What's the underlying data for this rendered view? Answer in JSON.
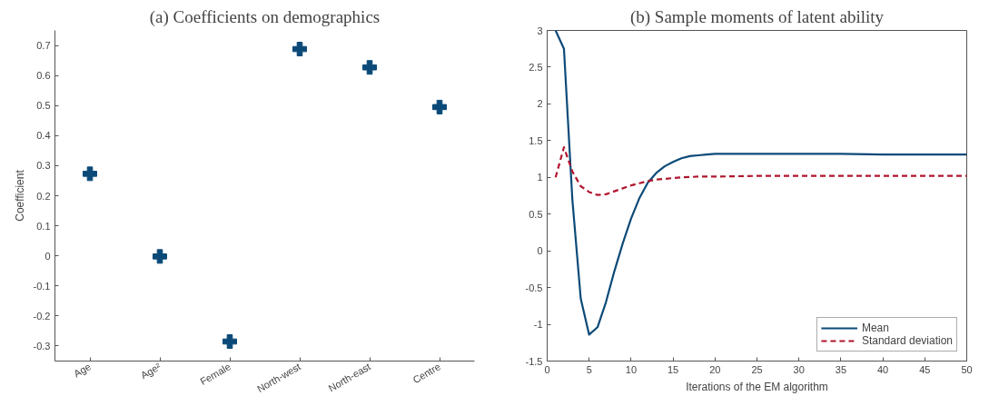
{
  "chart_data": [
    {
      "type": "scatter",
      "title": "(a) Coefficients on demographics",
      "ylabel": "Coefficient",
      "categories": [
        "Age",
        "Age²",
        "Female",
        "North-west",
        "North-east",
        "Centre"
      ],
      "series": [
        {
          "color": "#0b4a78",
          "values": [
            0.273,
            -0.002,
            -0.285,
            0.688,
            0.627,
            0.495
          ]
        }
      ],
      "ylim": [
        -0.35,
        0.75
      ],
      "yticks": [
        -0.3,
        -0.2,
        -0.1,
        0,
        0.1,
        0.2,
        0.3,
        0.4,
        0.5,
        0.6,
        0.7
      ],
      "marker": "cross",
      "grid": false
    },
    {
      "type": "line",
      "title": "(b) Sample moments of latent ability",
      "xlabel": "Iterations of the EM algorithm",
      "series": [
        {
          "name": "Mean",
          "color": "#0b4a78",
          "line_style": "solid",
          "x": [
            1,
            2,
            3,
            4,
            5,
            6,
            7,
            8,
            9,
            10,
            11,
            12,
            13,
            14,
            15,
            16,
            17,
            18,
            19,
            20,
            22,
            25,
            30,
            35,
            40,
            45,
            50
          ],
          "values": [
            3.0,
            2.75,
            0.7,
            -0.65,
            -1.14,
            -1.04,
            -0.7,
            -0.28,
            0.1,
            0.44,
            0.72,
            0.93,
            1.06,
            1.15,
            1.21,
            1.26,
            1.29,
            1.3,
            1.31,
            1.32,
            1.32,
            1.32,
            1.32,
            1.32,
            1.31,
            1.31,
            1.31
          ]
        },
        {
          "name": "Standard deviation",
          "color": "#b0162e",
          "line_style": "dashed",
          "x": [
            1,
            2,
            3,
            4,
            5,
            6,
            7,
            8,
            9,
            10,
            11,
            12,
            13,
            14,
            15,
            16,
            18,
            20,
            25,
            30,
            35,
            40,
            45,
            50
          ],
          "values": [
            1.0,
            1.41,
            1.08,
            0.88,
            0.8,
            0.76,
            0.77,
            0.81,
            0.85,
            0.89,
            0.92,
            0.95,
            0.97,
            0.98,
            0.99,
            1.0,
            1.01,
            1.01,
            1.02,
            1.02,
            1.02,
            1.02,
            1.02,
            1.02
          ]
        }
      ],
      "xlim": [
        0,
        50
      ],
      "xticks": [
        0,
        5,
        10,
        15,
        20,
        25,
        30,
        35,
        40,
        45,
        50
      ],
      "ylim": [
        -1.5,
        3
      ],
      "yticks": [
        -1.5,
        -1,
        -0.5,
        0,
        0.5,
        1,
        1.5,
        2,
        2.5,
        3
      ],
      "marker": "none",
      "grid": false,
      "legend": "bottom right"
    }
  ]
}
